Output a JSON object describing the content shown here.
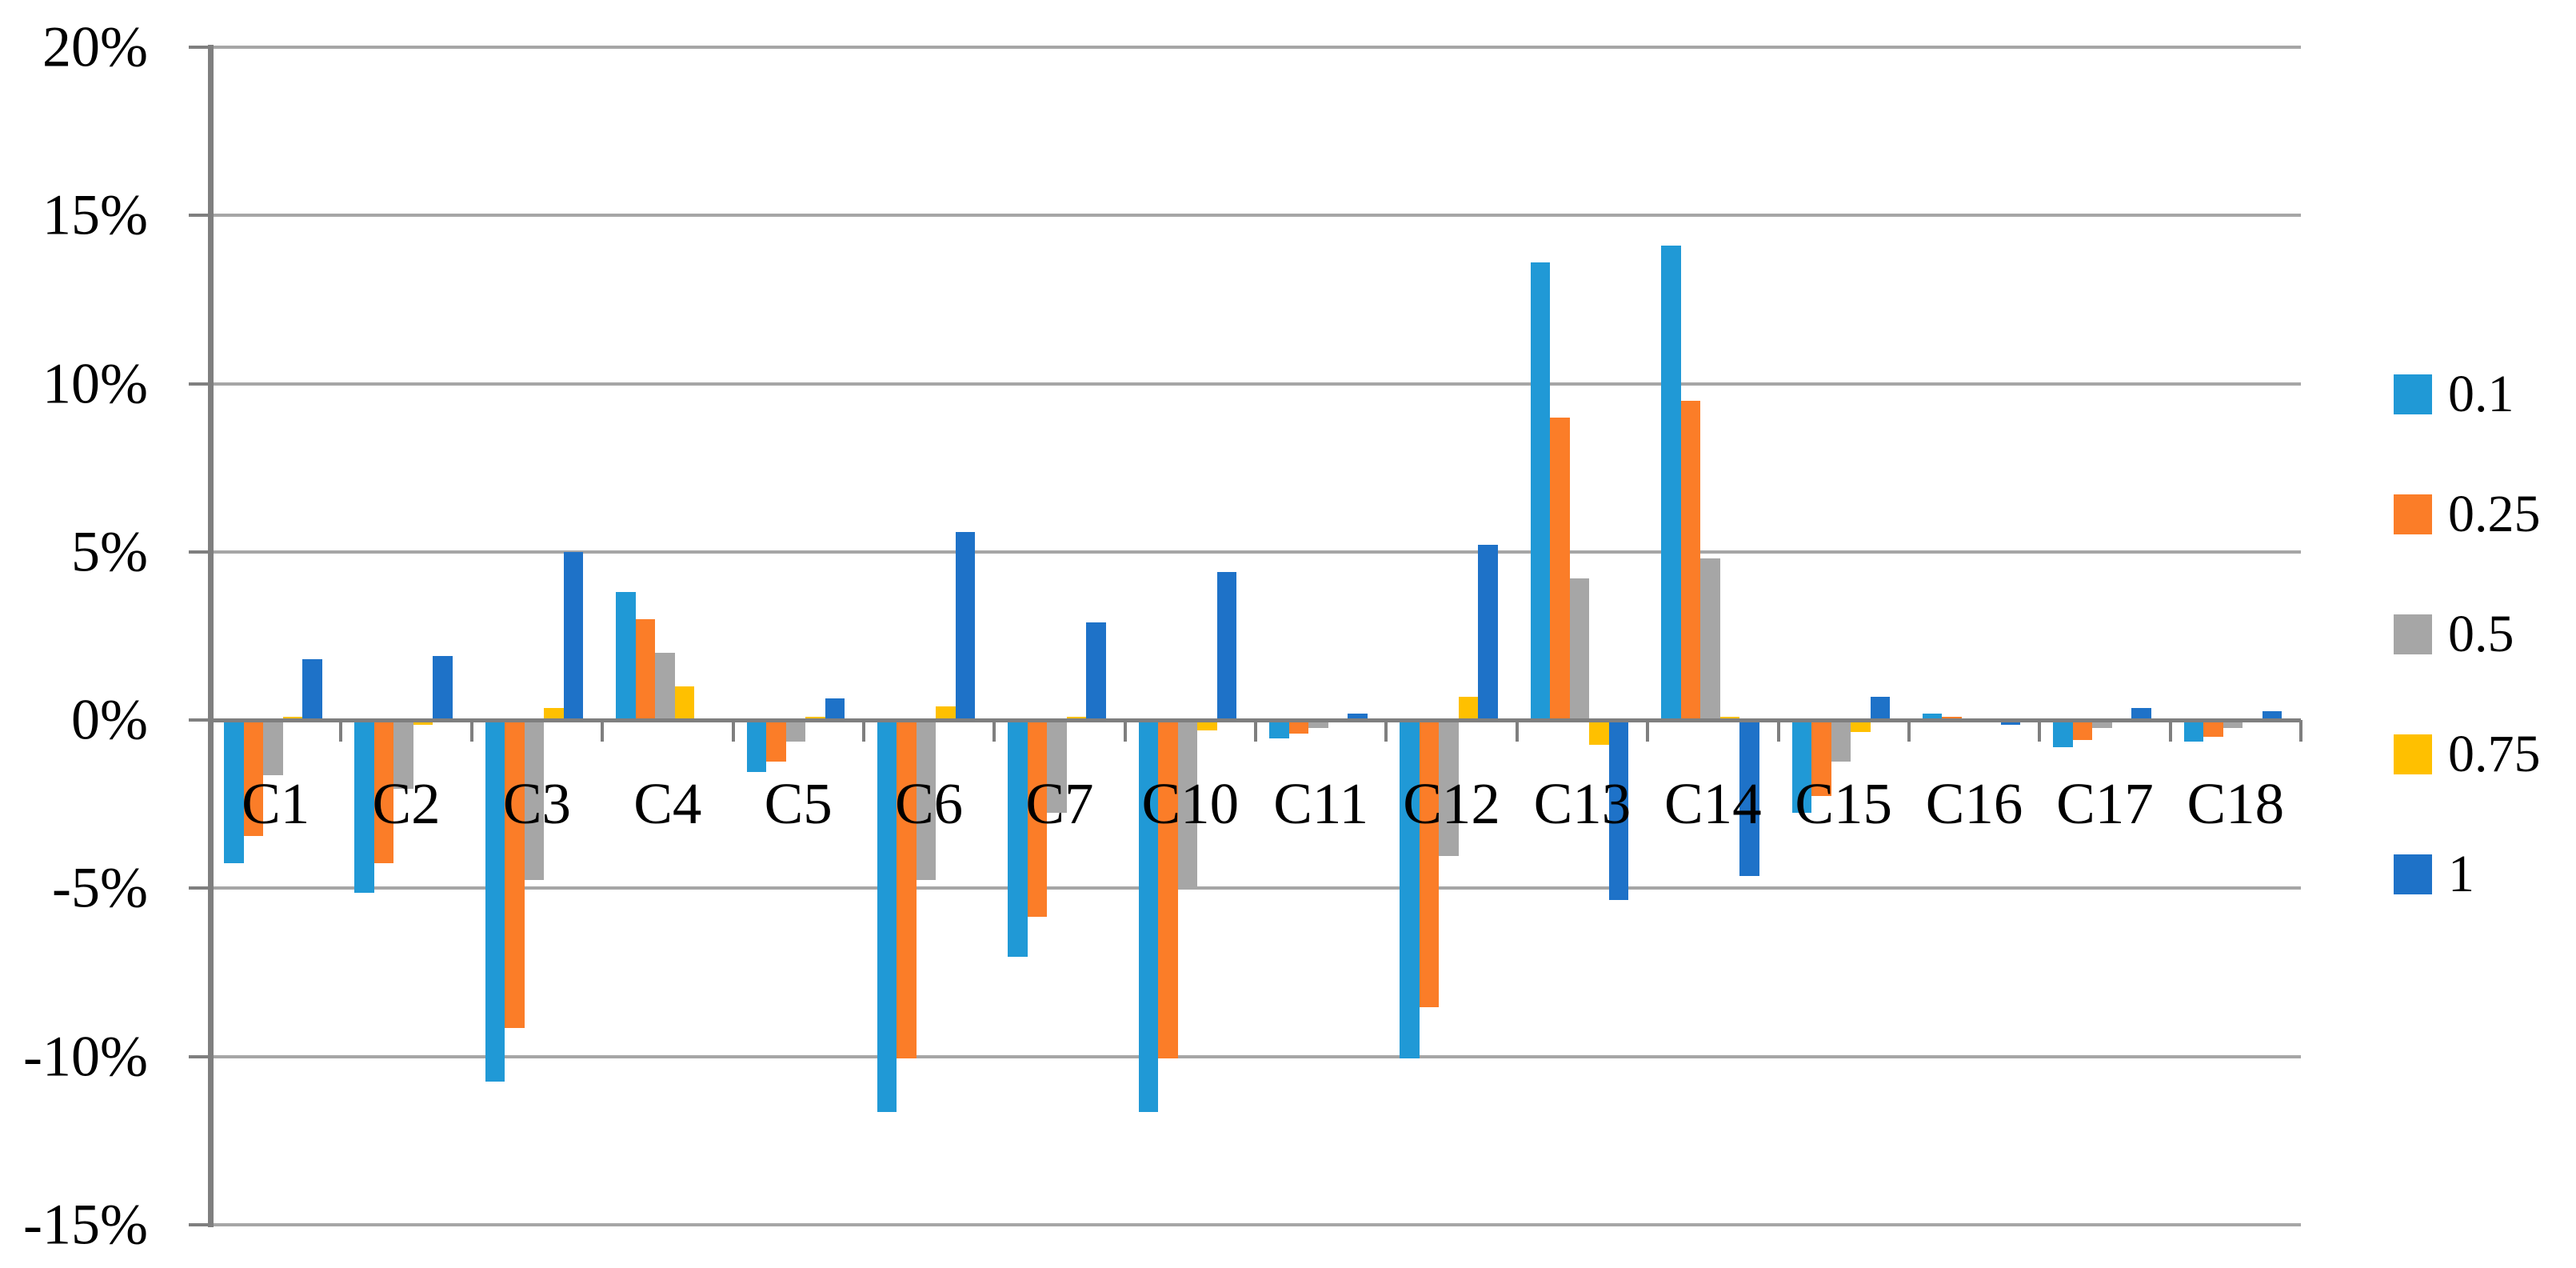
{
  "chart_data": {
    "type": "bar",
    "title": "",
    "xlabel": "",
    "ylabel": "",
    "categories": [
      "C1",
      "C2",
      "C3",
      "C4",
      "C5",
      "C6",
      "C7",
      "C10",
      "C11",
      "C12",
      "C13",
      "C14",
      "C15",
      "C16",
      "C17",
      "C18"
    ],
    "series": [
      {
        "name": "0.1",
        "color": "#2099D6",
        "values": [
          -4.2,
          -5.1,
          -10.7,
          3.8,
          -1.5,
          -11.6,
          -7.0,
          -11.6,
          -0.5,
          -10.0,
          13.6,
          14.1,
          -2.7,
          0.2,
          -0.75,
          -0.6
        ]
      },
      {
        "name": "0.25",
        "color": "#FB7D28",
        "values": [
          -3.4,
          -4.2,
          -9.1,
          3.0,
          -1.2,
          -10.0,
          -5.8,
          -10.0,
          -0.35,
          -8.5,
          9.0,
          9.5,
          -2.2,
          0.1,
          -0.55,
          -0.45
        ]
      },
      {
        "name": "0.5",
        "color": "#A6A6A6",
        "values": [
          -1.6,
          -2.0,
          -4.7,
          2.0,
          -0.6,
          -4.7,
          -2.7,
          -4.9,
          -0.2,
          -4.0,
          4.2,
          4.8,
          -1.2,
          0.0,
          -0.2,
          -0.2
        ]
      },
      {
        "name": "0.75",
        "color": "#FFC000",
        "values": [
          0.1,
          -0.1,
          0.35,
          1.0,
          0.1,
          0.4,
          0.1,
          -0.25,
          0.0,
          0.7,
          -0.7,
          0.1,
          -0.3,
          0.0,
          0.0,
          0.0
        ]
      },
      {
        "name": "1",
        "color": "#1E72C8",
        "values": [
          1.8,
          1.9,
          5.0,
          0.0,
          0.65,
          5.6,
          2.9,
          4.4,
          0.2,
          5.2,
          -5.3,
          -4.6,
          0.7,
          -0.1,
          0.35,
          0.25
        ]
      }
    ],
    "ylim": [
      -15,
      20
    ],
    "ytick_values": [
      20,
      15,
      10,
      5,
      0,
      -5,
      -10,
      -15
    ],
    "ytick_labels": [
      "20%",
      "15%",
      "10%",
      "5%",
      "0%",
      "-5%",
      "-10%",
      "-15%"
    ],
    "value_unit": "%",
    "grid": true,
    "grid_color": "#A6A6A6",
    "axis_color": "#7F7F7F",
    "legend_position": "right",
    "legend_labels": [
      "0.1",
      "0.25",
      "0.5",
      "0.75",
      "1"
    ]
  }
}
